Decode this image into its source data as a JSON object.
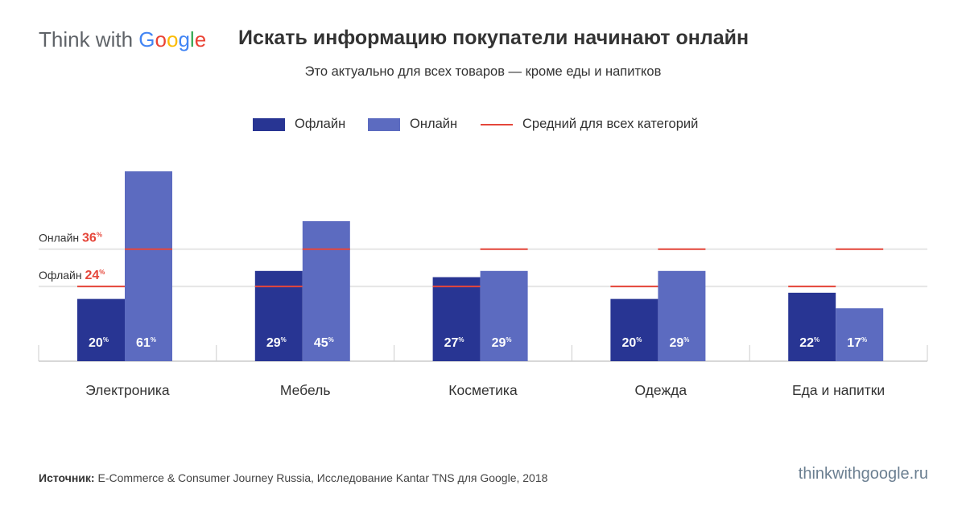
{
  "brand": {
    "think": "Think with ",
    "google": [
      "G",
      "o",
      "o",
      "g",
      "l",
      "e"
    ]
  },
  "header": {
    "title": "Искать информацию покупатели начинают онлайн",
    "subtitle": "Это актуально для всех товаров — кроме еды и напитков"
  },
  "colors": {
    "offline": "#283593",
    "online": "#5c6bc0",
    "average": "#e5463a",
    "axis": "#cccccc",
    "gridline": "#e6e6e6"
  },
  "chart_data": {
    "type": "bar",
    "categories": [
      "Электроника",
      "Мебель",
      "Косметика",
      "Одежда",
      "Еда и напитки"
    ],
    "series": [
      {
        "name": "Офлайн",
        "values": [
          20,
          29,
          27,
          20,
          22
        ],
        "value_labels": [
          "20",
          "29",
          "27",
          "20",
          "22"
        ]
      },
      {
        "name": "Онлайн",
        "values": [
          61,
          45,
          29,
          29,
          17
        ],
        "value_labels": [
          "61",
          "45",
          "29",
          "29",
          "17"
        ]
      }
    ],
    "value_suffix": "%",
    "averages": [
      {
        "series": "Офлайн",
        "label": "Офлайн",
        "value": 24,
        "value_label": "24"
      },
      {
        "series": "Онлайн",
        "label": "Онлайн",
        "value": 36,
        "value_label": "36"
      }
    ],
    "legend": [
      "Офлайн",
      "Онлайн",
      "Средний для всех категорий"
    ],
    "legend_position": "top-center",
    "ylim": [
      0,
      65
    ],
    "grid": false
  },
  "footer": {
    "source_label": "Источник:",
    "source_text": " E-Commerce & Consumer Journey Russia, Исследование Kantar TNS для Google, 2018",
    "url": "thinkwithgoogle.ru"
  }
}
